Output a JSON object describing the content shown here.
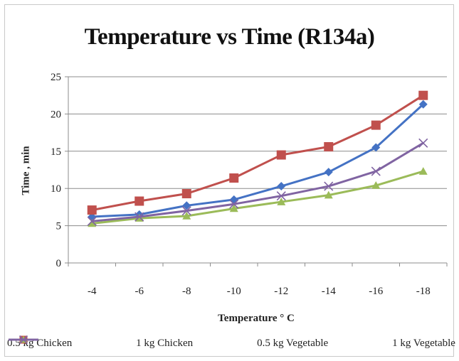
{
  "chart_data": {
    "type": "line",
    "title": "Temperature vs Time (R134a)",
    "xlabel": "Temperature ° C",
    "ylabel": "Time , min",
    "categories": [
      "-4",
      "-6",
      "-8",
      "-10",
      "-12",
      "-14",
      "-16",
      "-18"
    ],
    "ylim": [
      0,
      25
    ],
    "yticks": [
      0,
      5,
      10,
      15,
      20,
      25
    ],
    "grid": true,
    "legend_position": "bottom",
    "series": [
      {
        "name": "0.5 kg Chicken",
        "color": "#4472c4",
        "marker": "diamond",
        "values": [
          6.2,
          6.5,
          7.7,
          8.5,
          10.3,
          12.2,
          15.5,
          21.3
        ]
      },
      {
        "name": "1 kg Chicken",
        "color": "#c0504d",
        "marker": "square",
        "values": [
          7.1,
          8.3,
          9.3,
          11.4,
          14.5,
          15.6,
          18.5,
          22.5
        ]
      },
      {
        "name": "0.5 kg Vegetable",
        "color": "#9bbb59",
        "marker": "triangle",
        "values": [
          5.3,
          6.0,
          6.3,
          7.3,
          8.2,
          9.1,
          10.4,
          12.3
        ]
      },
      {
        "name": "1 kg Vegetable",
        "color": "#8064a2",
        "marker": "x",
        "values": [
          5.6,
          6.2,
          7.0,
          7.9,
          9.0,
          10.3,
          12.3,
          16.1
        ]
      }
    ]
  }
}
